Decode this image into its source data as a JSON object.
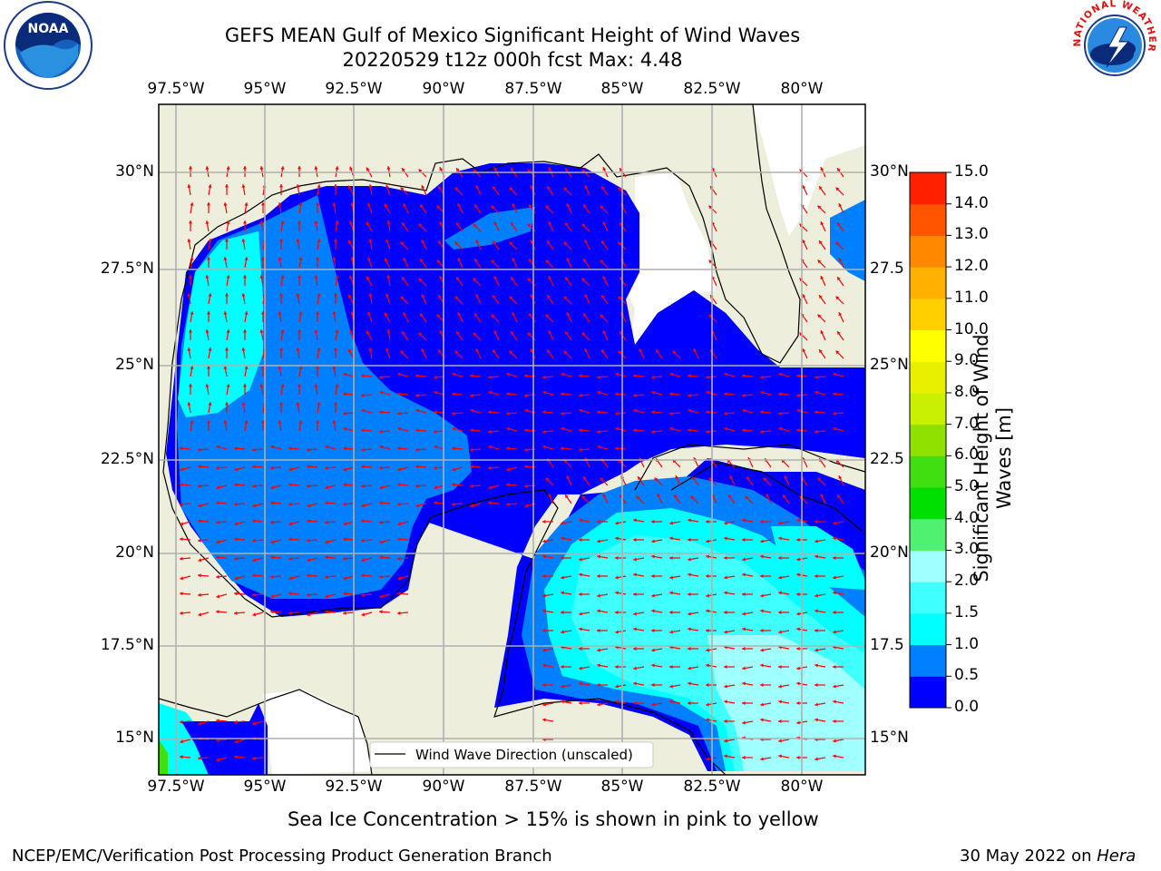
{
  "title_line1": "GEFS MEAN Gulf of Mexico Significant Height of Wind Waves",
  "title_line2": "20220529 t12z 000h fcst   Max: 4.48",
  "lon_labels": [
    "97.5°W",
    "95°W",
    "92.5°W",
    "90°W",
    "87.5°W",
    "85°W",
    "82.5°W",
    "80°W"
  ],
  "lat_labels": [
    "30°N",
    "27.5°N",
    "25°N",
    "22.5°N",
    "20°N",
    "17.5°N",
    "15°N"
  ],
  "right_lat_labels": [
    "30°N",
    "27.5",
    "25°N",
    "22.5",
    "20°N",
    "17.5",
    "15°N"
  ],
  "legend_label": "Wind Wave Direction (unscaled)",
  "colorbar": {
    "label_line1": "Significant Height of Wind",
    "label_line2": "Waves [m]",
    "ticks": [
      "0.0",
      "0.5",
      "1.0",
      "1.5",
      "2.0",
      "3.0",
      "4.0",
      "5.0",
      "6.0",
      "7.0",
      "8.0",
      "9.0",
      "10.0",
      "11.0",
      "12.0",
      "13.0",
      "14.0",
      "15.0"
    ],
    "colors": [
      "#0000ff",
      "#0080ff",
      "#00ffff",
      "#40ffff",
      "#a0ffff",
      "#50f070",
      "#00e000",
      "#40e010",
      "#90e000",
      "#c8f000",
      "#e8f000",
      "#ffff00",
      "#ffd000",
      "#ffb000",
      "#ff8800",
      "#ff5500",
      "#ff2000",
      "#ff0000"
    ]
  },
  "note": "Sea Ice Concentration > 15% is shown in pink to yellow",
  "footer_left": "NCEP/EMC/Verification Post Processing Product Generation Branch",
  "footer_date": "30 May 2022 on",
  "footer_host": "Hera",
  "logo_noaa": "NOAA",
  "logo_nws": "NATIONAL WEATHER SERVICE",
  "colors": {
    "land": "#eeeedc",
    "arrow": "#ff0000",
    "grid": "#b0b0b0"
  }
}
